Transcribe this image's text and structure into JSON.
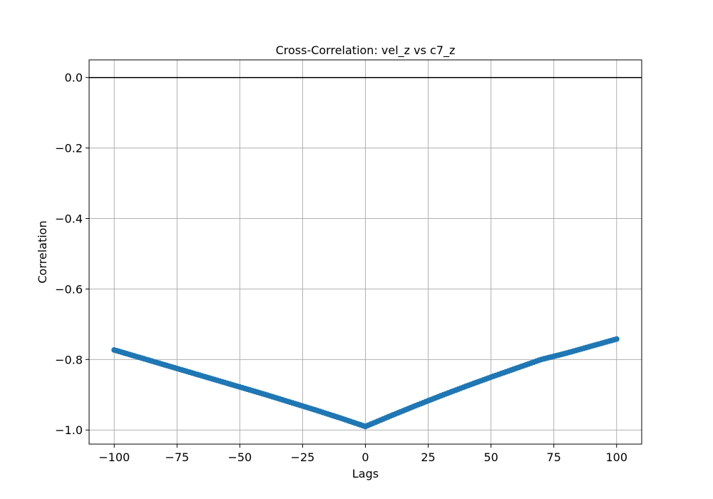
{
  "chart_data": {
    "type": "scatter",
    "title": "Cross-Correlation: vel_z vs c7_z",
    "xlabel": "Lags",
    "ylabel": "Correlation",
    "xlim": [
      -110,
      110
    ],
    "ylim": [
      -1.04,
      0.05
    ],
    "grid": true,
    "marker_color": "#1f77b4",
    "reference_line": {
      "y": 0.0,
      "color": "#000000"
    },
    "x_ticks": [
      {
        "value": -100,
        "label": "−100"
      },
      {
        "value": -75,
        "label": "−75"
      },
      {
        "value": -50,
        "label": "−50"
      },
      {
        "value": -25,
        "label": "−25"
      },
      {
        "value": 0,
        "label": "0"
      },
      {
        "value": 25,
        "label": "25"
      },
      {
        "value": 50,
        "label": "50"
      },
      {
        "value": 75,
        "label": "75"
      },
      {
        "value": 100,
        "label": "100"
      }
    ],
    "y_ticks": [
      {
        "value": 0.0,
        "label": "0.0"
      },
      {
        "value": -0.2,
        "label": "−0.2"
      },
      {
        "value": -0.4,
        "label": "−0.4"
      },
      {
        "value": -0.6,
        "label": "−0.6"
      },
      {
        "value": -0.8,
        "label": "−0.8"
      },
      {
        "value": -1.0,
        "label": "−1.0"
      }
    ],
    "series": [
      {
        "x": [
          -100,
          -90,
          -80,
          -70,
          -60,
          -50,
          -40,
          -30,
          -20,
          -10,
          0,
          10,
          20,
          30,
          40,
          50,
          60,
          70,
          80,
          90,
          100
        ],
        "y": [
          -0.773,
          -0.794,
          -0.815,
          -0.836,
          -0.857,
          -0.878,
          -0.899,
          -0.921,
          -0.943,
          -0.966,
          -0.99,
          -0.96,
          -0.931,
          -0.903,
          -0.876,
          -0.85,
          -0.825,
          -0.8,
          -0.782,
          -0.762,
          -0.742
        ]
      }
    ]
  }
}
